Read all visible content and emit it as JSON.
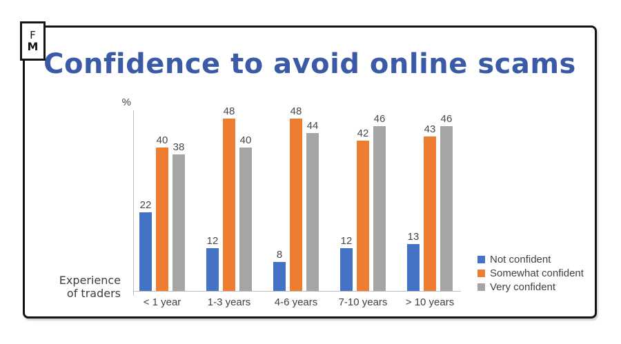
{
  "logo": {
    "line1": "F",
    "line2": "M"
  },
  "title": "Confidence to avoid online scams",
  "colors": {
    "title_blue": "#3A5AA6",
    "axis_gray": "#BFBFBF",
    "data_label_gray": "#474747",
    "frame_black": "#141414"
  },
  "axis": {
    "y_unit_label": "%",
    "x_axis_title_line1": "Experience",
    "x_axis_title_line2": "of traders"
  },
  "chart_data": {
    "type": "bar",
    "title": "Confidence to avoid online scams",
    "ylabel": "%",
    "xlabel": "Experience of traders",
    "categories": [
      "< 1 year",
      "1-3 years",
      "4-6 years",
      "7-10 years",
      "> 10 years"
    ],
    "series": [
      {
        "name": "Not confident",
        "color": "#4472C4",
        "values": [
          22,
          12,
          8,
          12,
          13
        ]
      },
      {
        "name": "Somewhat confident",
        "color": "#ED7D31",
        "values": [
          40,
          48,
          48,
          42,
          43
        ]
      },
      {
        "name": "Very confident",
        "color": "#A5A5A5",
        "values": [
          38,
          40,
          44,
          46,
          46
        ]
      }
    ],
    "ylim": [
      0,
      50
    ],
    "grid": false,
    "data_labels": true,
    "legend_position": "right"
  }
}
